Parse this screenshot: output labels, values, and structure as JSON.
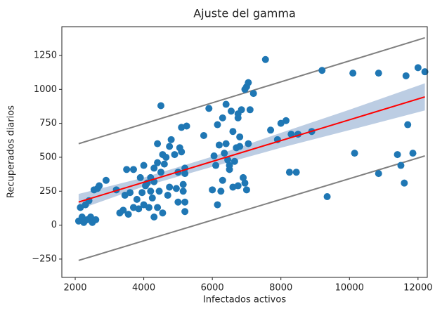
{
  "chart_data": {
    "type": "scatter",
    "title": "Ajuste del gamma",
    "x_label": "Infectados activos",
    "y_label": "Recuperados diarios",
    "xlim": [
      1610,
      12270
    ],
    "ylim": [
      -385,
      1462
    ],
    "xticks": [
      2000,
      4000,
      6000,
      8000,
      10000,
      12000
    ],
    "yticks": [
      {
        "value": -250,
        "label": "−250"
      },
      0,
      250,
      500,
      750,
      1000,
      1250
    ],
    "band": {
      "color": "#b0c4de",
      "x": [
        2100,
        4000,
        6000,
        8000,
        10000,
        12200
      ],
      "lower": [
        115,
        285,
        430,
        570,
        700,
        845
      ],
      "upper": [
        230,
        350,
        505,
        680,
        850,
        1045
      ]
    },
    "series": [
      {
        "type": "line",
        "color": "#808080",
        "x": [
          2100,
          12200
        ],
        "values": [
          600,
          1380
        ]
      },
      {
        "type": "line",
        "color": "#808080",
        "x": [
          2100,
          12200
        ],
        "values": [
          -260,
          510
        ]
      },
      {
        "type": "scatter",
        "color": "#1f77b4",
        "x": [
          2100,
          2150,
          2200,
          2250,
          2300,
          2350,
          2400,
          2450,
          2500,
          2550,
          2600,
          2650,
          2700,
          2900,
          3200,
          3300,
          3400,
          3450,
          3500,
          3550,
          3600,
          3700,
          3700,
          3800,
          3850,
          3900,
          3950,
          4000,
          4000,
          4050,
          4100,
          4150,
          4200,
          4200,
          4250,
          4300,
          4300,
          4300,
          4400,
          4400,
          4400,
          4450,
          4500,
          4500,
          4550,
          4550,
          4600,
          4650,
          4700,
          4750,
          4750,
          4800,
          4900,
          4950,
          5000,
          5000,
          5050,
          5100,
          5100,
          5150,
          5150,
          5200,
          5200,
          5250,
          5200,
          5200,
          5750,
          5900,
          6000,
          6050,
          6100,
          6150,
          6150,
          6200,
          6250,
          6300,
          6300,
          6350,
          6400,
          6400,
          6450,
          6500,
          6500,
          6550,
          6600,
          6600,
          6650,
          6700,
          6750,
          6750,
          6750,
          6800,
          6800,
          6850,
          6900,
          6950,
          6950,
          7000,
          7000,
          7050,
          7050,
          7100,
          7200,
          7550,
          7700,
          7900,
          8000,
          8150,
          8250,
          8300,
          8450,
          8500,
          8900,
          9200,
          9350,
          10100,
          10150,
          10850,
          10850,
          11400,
          11500,
          11600,
          11650,
          11700,
          11850,
          12000,
          12200
        ],
        "values": [
          30,
          130,
          60,
          20,
          150,
          40,
          180,
          60,
          20,
          260,
          40,
          270,
          290,
          330,
          260,
          90,
          110,
          220,
          410,
          80,
          240,
          410,
          130,
          190,
          120,
          350,
          240,
          150,
          440,
          290,
          310,
          130,
          350,
          250,
          200,
          320,
          420,
          60,
          130,
          460,
          600,
          250,
          880,
          390,
          520,
          90,
          450,
          500,
          220,
          580,
          280,
          630,
          520,
          270,
          390,
          170,
          570,
          720,
          540,
          250,
          300,
          380,
          420,
          730,
          170,
          100,
          660,
          860,
          260,
          510,
          440,
          150,
          740,
          590,
          250,
          790,
          330,
          530,
          890,
          600,
          480,
          410,
          440,
          840,
          690,
          280,
          470,
          570,
          790,
          820,
          290,
          650,
          580,
          850,
          350,
          310,
          1000,
          260,
          1020,
          1050,
          600,
          850,
          970,
          1220,
          700,
          630,
          750,
          770,
          390,
          670,
          390,
          670,
          690,
          1140,
          210,
          1120,
          530,
          380,
          1120,
          520,
          440,
          310,
          1100,
          740,
          530,
          1160,
          1130
        ]
      },
      {
        "type": "line",
        "color": "#ff0000",
        "x": [
          2100,
          12200
        ],
        "values": [
          170,
          945
        ]
      }
    ]
  }
}
